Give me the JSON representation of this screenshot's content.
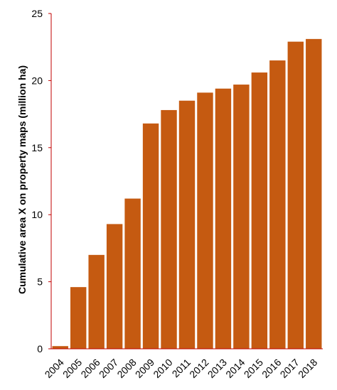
{
  "chart_data": {
    "type": "bar",
    "title": "",
    "xlabel": "",
    "ylabel": "Cumulative area X on property maps (million ha)",
    "categories": [
      "2004",
      "2005",
      "2006",
      "2007",
      "2008",
      "2009",
      "2010",
      "2011",
      "2012",
      "2013",
      "2014",
      "2015",
      "2016",
      "2017",
      "2018"
    ],
    "values": [
      0.2,
      4.6,
      7.0,
      9.3,
      11.2,
      16.8,
      17.8,
      18.5,
      19.1,
      19.4,
      19.7,
      20.6,
      21.5,
      22.9,
      23.1
    ],
    "ylim": [
      0,
      25
    ],
    "yticks": [
      0,
      5,
      10,
      15,
      20,
      25
    ],
    "grid": false,
    "legend": "none",
    "colors": {
      "bar": "#C55A11",
      "axis": "#C00000"
    }
  }
}
